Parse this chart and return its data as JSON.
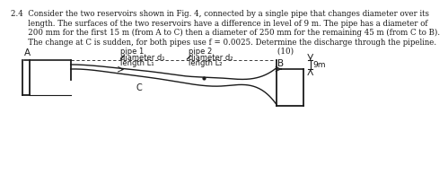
{
  "title_line1": "2.4  Consider the two reservoirs shown in Fig. 4, connected by a single pipe that changes diameter over its",
  "title_line2": "       length. The surfaces of the two reservoirs have a difference in level of 9 m. The pipe has a diameter of",
  "title_line3": "       200 mm for the first 15 m (from A to C) then a diameter of 250 mm for the remaining 45 m (from C to B).",
  "title_line4": "       The change at C is sudden, for both pipes use f = 0.0025. Determine the discharge through the pipeline.",
  "title_line5": "                                                                                                            (10)",
  "label_A": "A",
  "label_B": "B",
  "label_C": "C",
  "label_9m": "9m",
  "pipe1_line1": "pipe 1",
  "pipe1_line2": "diameter d₁",
  "pipe1_line3": "length L₁",
  "pipe2_line1": "pipe 2",
  "pipe2_line2": "diameter d₂",
  "pipe2_line3": "length L₂",
  "bg_color": "#ffffff",
  "line_color": "#1a1a1a",
  "text_color": "#1a1a1a",
  "font_size_title": 6.2,
  "font_size_labels": 6.5
}
